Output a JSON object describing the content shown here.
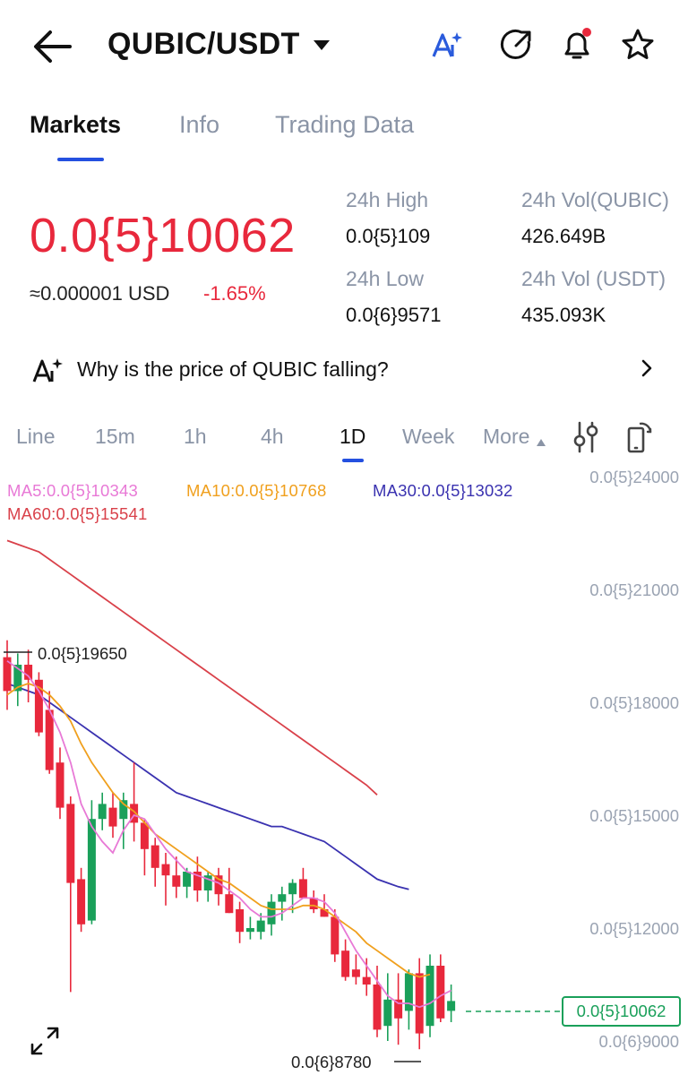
{
  "header": {
    "pair": "QUBIC/USDT",
    "icons": [
      "back-arrow-icon",
      "ai-sparkle-icon",
      "share-icon",
      "bell-icon",
      "star-icon"
    ],
    "notification_dot_color": "#e8283c"
  },
  "tabs": [
    {
      "label": "Markets",
      "active": true
    },
    {
      "label": "Info",
      "active": false
    },
    {
      "label": "Trading Data",
      "active": false
    }
  ],
  "price": {
    "last": "0.0{5}10062",
    "usd": "≈0.000001 USD",
    "change": "-1.65%"
  },
  "stats": {
    "high_label": "24h High",
    "high_value": "0.0{5}109",
    "low_label": "24h Low",
    "low_value": "0.0{6}9571",
    "vol_base_label": "24h Vol(QUBIC)",
    "vol_base_value": "426.649B",
    "vol_quote_label": "24h Vol (USDT)",
    "vol_quote_value": "435.093K"
  },
  "ai_question": "Why is the price of QUBIC falling?",
  "intervals": [
    {
      "label": "Line",
      "active": false
    },
    {
      "label": "15m",
      "active": false
    },
    {
      "label": "1h",
      "active": false
    },
    {
      "label": "4h",
      "active": false
    },
    {
      "label": "1D",
      "active": true
    },
    {
      "label": "Week",
      "active": false
    },
    {
      "label": "More",
      "active": false
    }
  ],
  "ma": {
    "ma5": "MA5:0.0{5}10343",
    "ma10": "MA10:0.0{5}10768",
    "ma30": "MA30:0.0{5}13032",
    "ma60": "MA60:0.0{5}15541"
  },
  "colors": {
    "up": "#1aa05a",
    "down": "#e8283c",
    "ma5": "#e879d6",
    "ma10": "#f0a01e",
    "ma30": "#3a32b0",
    "ma60": "#d9414a",
    "accent": "#2450e0"
  },
  "y_axis": [
    "0.0{5}24000",
    "0.0{5}21000",
    "0.0{5}18000",
    "0.0{5}15000",
    "0.0{5}12000",
    "0.0{6}9000"
  ],
  "annotations": {
    "high_marker": "0.0{5}19650",
    "low_marker": "0.0{6}8780",
    "current_price": "0.0{5}10062"
  },
  "chart_data": {
    "type": "candlestick",
    "unit": "0.0{5} (×1e-10 USDT)",
    "ylim": [
      8500,
      24500
    ],
    "candles": [
      {
        "o": 19200,
        "h": 19650,
        "l": 17800,
        "c": 18300
      },
      {
        "o": 18300,
        "h": 19300,
        "l": 17900,
        "c": 19000
      },
      {
        "o": 19000,
        "h": 19400,
        "l": 18000,
        "c": 18600
      },
      {
        "o": 18600,
        "h": 18800,
        "l": 17100,
        "c": 17200
      },
      {
        "o": 17800,
        "h": 18300,
        "l": 16100,
        "c": 16200
      },
      {
        "o": 16400,
        "h": 16800,
        "l": 14900,
        "c": 15200
      },
      {
        "o": 15300,
        "h": 15500,
        "l": 10300,
        "c": 13200
      },
      {
        "o": 13300,
        "h": 13600,
        "l": 11900,
        "c": 12100
      },
      {
        "o": 12200,
        "h": 15400,
        "l": 12100,
        "c": 14900
      },
      {
        "o": 14900,
        "h": 15600,
        "l": 14600,
        "c": 15300
      },
      {
        "o": 15200,
        "h": 15600,
        "l": 14400,
        "c": 14700
      },
      {
        "o": 14900,
        "h": 15600,
        "l": 14100,
        "c": 15400
      },
      {
        "o": 15300,
        "h": 16400,
        "l": 14300,
        "c": 14800
      },
      {
        "o": 14800,
        "h": 14900,
        "l": 13400,
        "c": 14100
      },
      {
        "o": 14200,
        "h": 14400,
        "l": 13100,
        "c": 13600
      },
      {
        "o": 13700,
        "h": 14000,
        "l": 12600,
        "c": 13400
      },
      {
        "o": 13400,
        "h": 13900,
        "l": 12800,
        "c": 13100
      },
      {
        "o": 13100,
        "h": 13600,
        "l": 12800,
        "c": 13500
      },
      {
        "o": 13500,
        "h": 13900,
        "l": 12700,
        "c": 13000
      },
      {
        "o": 13000,
        "h": 13500,
        "l": 12700,
        "c": 13400
      },
      {
        "o": 13400,
        "h": 13600,
        "l": 12600,
        "c": 12900
      },
      {
        "o": 12900,
        "h": 13600,
        "l": 12400,
        "c": 12400
      },
      {
        "o": 12500,
        "h": 12700,
        "l": 11600,
        "c": 11900
      },
      {
        "o": 11900,
        "h": 12300,
        "l": 11700,
        "c": 12000
      },
      {
        "o": 11900,
        "h": 12400,
        "l": 11700,
        "c": 12200
      },
      {
        "o": 12100,
        "h": 12900,
        "l": 11800,
        "c": 12700
      },
      {
        "o": 12700,
        "h": 13100,
        "l": 12200,
        "c": 12900
      },
      {
        "o": 12900,
        "h": 13300,
        "l": 12400,
        "c": 13200
      },
      {
        "o": 13300,
        "h": 13600,
        "l": 12800,
        "c": 12800
      },
      {
        "o": 12800,
        "h": 13000,
        "l": 12400,
        "c": 12500
      },
      {
        "o": 12500,
        "h": 12900,
        "l": 12300,
        "c": 12300
      },
      {
        "o": 12300,
        "h": 12500,
        "l": 11100,
        "c": 11300
      },
      {
        "o": 11400,
        "h": 11700,
        "l": 10600,
        "c": 10700
      },
      {
        "o": 10900,
        "h": 11300,
        "l": 10500,
        "c": 10700
      },
      {
        "o": 10700,
        "h": 11200,
        "l": 10200,
        "c": 10500
      },
      {
        "o": 10500,
        "h": 11000,
        "l": 9100,
        "c": 9300
      },
      {
        "o": 9400,
        "h": 10800,
        "l": 9000,
        "c": 10100
      },
      {
        "o": 10100,
        "h": 10800,
        "l": 8900,
        "c": 9600
      },
      {
        "o": 9800,
        "h": 10900,
        "l": 9300,
        "c": 10800
      },
      {
        "o": 10800,
        "h": 11200,
        "l": 8780,
        "c": 9200
      },
      {
        "o": 9400,
        "h": 11300,
        "l": 9100,
        "c": 11000
      },
      {
        "o": 11000,
        "h": 11300,
        "l": 9500,
        "c": 9600
      },
      {
        "o": 9800,
        "h": 10500,
        "l": 9500,
        "c": 10062
      }
    ],
    "ma5": [
      19100,
      18900,
      18700,
      18300,
      17800,
      17200,
      16400,
      15300,
      14700,
      14300,
      14000,
      14600,
      15000,
      14900,
      14500,
      14100,
      13800,
      13500,
      13400,
      13300,
      13200,
      13000,
      12800,
      12500,
      12300,
      12300,
      12400,
      12600,
      12800,
      12800,
      12700,
      12400,
      11900,
      11400,
      11000,
      10600,
      10200,
      10000,
      10000,
      9900,
      10000,
      10200,
      10343
    ],
    "ma10": [
      18200,
      18400,
      18500,
      18400,
      18200,
      17900,
      17500,
      16900,
      16400,
      16000,
      15600,
      15300,
      15100,
      14800,
      14500,
      14300,
      14100,
      13900,
      13700,
      13500,
      13300,
      13200,
      13000,
      12800,
      12600,
      12500,
      12500,
      12500,
      12600,
      12600,
      12500,
      12300,
      12100,
      11900,
      11600,
      11400,
      11200,
      11000,
      10800,
      10700,
      10768
    ],
    "ma30": [
      18500,
      18400,
      18300,
      18200,
      18000,
      17800,
      17600,
      17400,
      17200,
      17000,
      16800,
      16600,
      16400,
      16200,
      16000,
      15800,
      15600,
      15500,
      15400,
      15300,
      15200,
      15100,
      15000,
      14900,
      14800,
      14700,
      14700,
      14600,
      14500,
      14400,
      14300,
      14100,
      13900,
      13700,
      13500,
      13300,
      13200,
      13100,
      13032
    ],
    "ma60": [
      22300,
      22200,
      22100,
      22000,
      21800,
      21600,
      21400,
      21200,
      21000,
      20800,
      20600,
      20400,
      20200,
      20000,
      19800,
      19600,
      19400,
      19200,
      19000,
      18800,
      18600,
      18400,
      18200,
      18000,
      17800,
      17600,
      17400,
      17200,
      17000,
      16800,
      16600,
      16400,
      16200,
      16000,
      15800,
      15541
    ]
  }
}
